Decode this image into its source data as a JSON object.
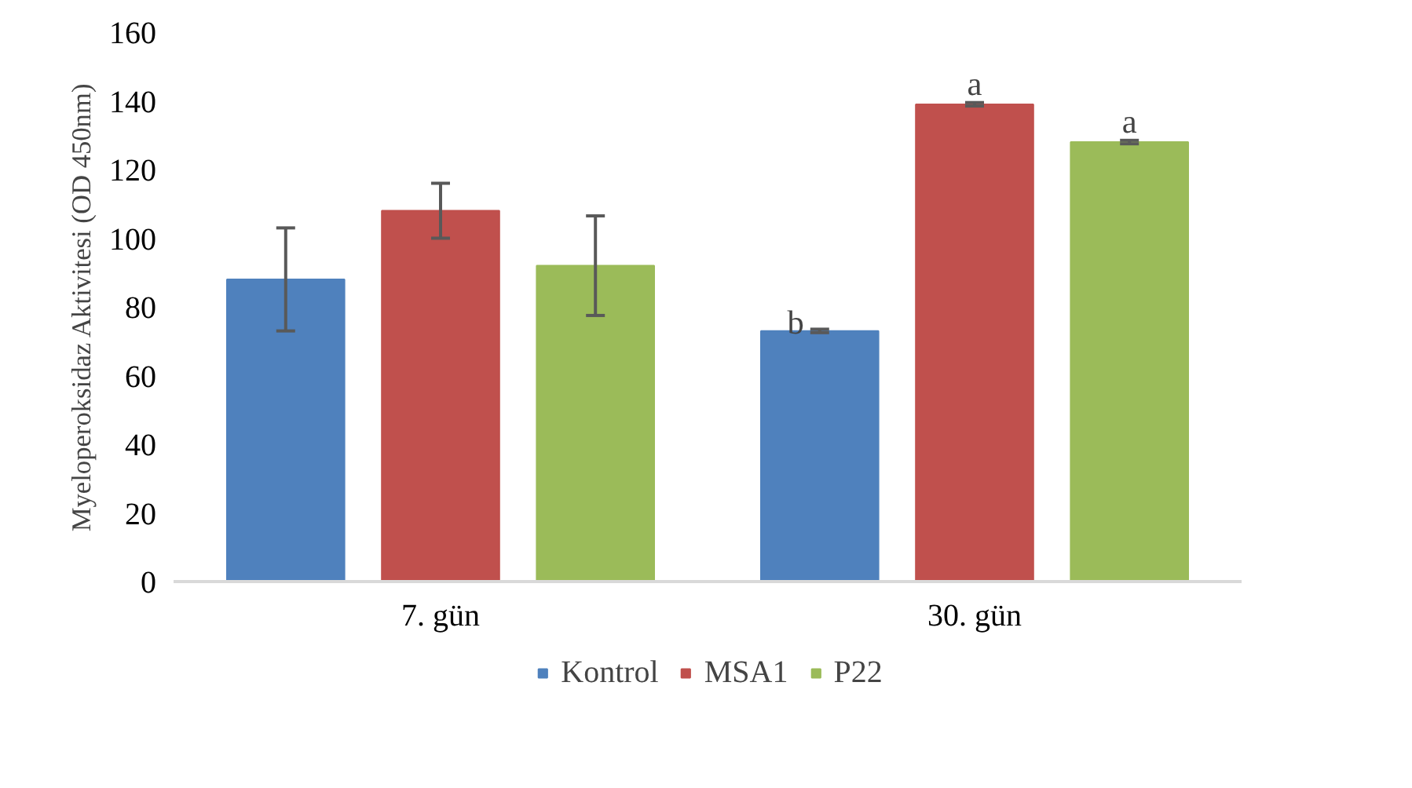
{
  "chart_data": {
    "type": "bar",
    "ylabel": "Myeloperoksidaz Aktivitesi (OD 450nm)",
    "categories": [
      "7. gün",
      "30. gün"
    ],
    "series": [
      {
        "name": "Kontrol",
        "color": "#4f81bd",
        "values": [
          88,
          73
        ],
        "errors": [
          15,
          0.5
        ]
      },
      {
        "name": "MSA1",
        "color": "#c0504d",
        "values": [
          108,
          139
        ],
        "errors": [
          8,
          0.5
        ]
      },
      {
        "name": "P22",
        "color": "#9bbb59",
        "values": [
          92,
          128
        ],
        "errors": [
          14.5,
          0.5
        ]
      }
    ],
    "ylim": [
      0,
      160
    ],
    "yticks": [
      0,
      20,
      40,
      60,
      80,
      100,
      120,
      140,
      160
    ],
    "grid": false,
    "legend": "bottom",
    "annotations": [
      "b",
      "a",
      "a"
    ]
  }
}
